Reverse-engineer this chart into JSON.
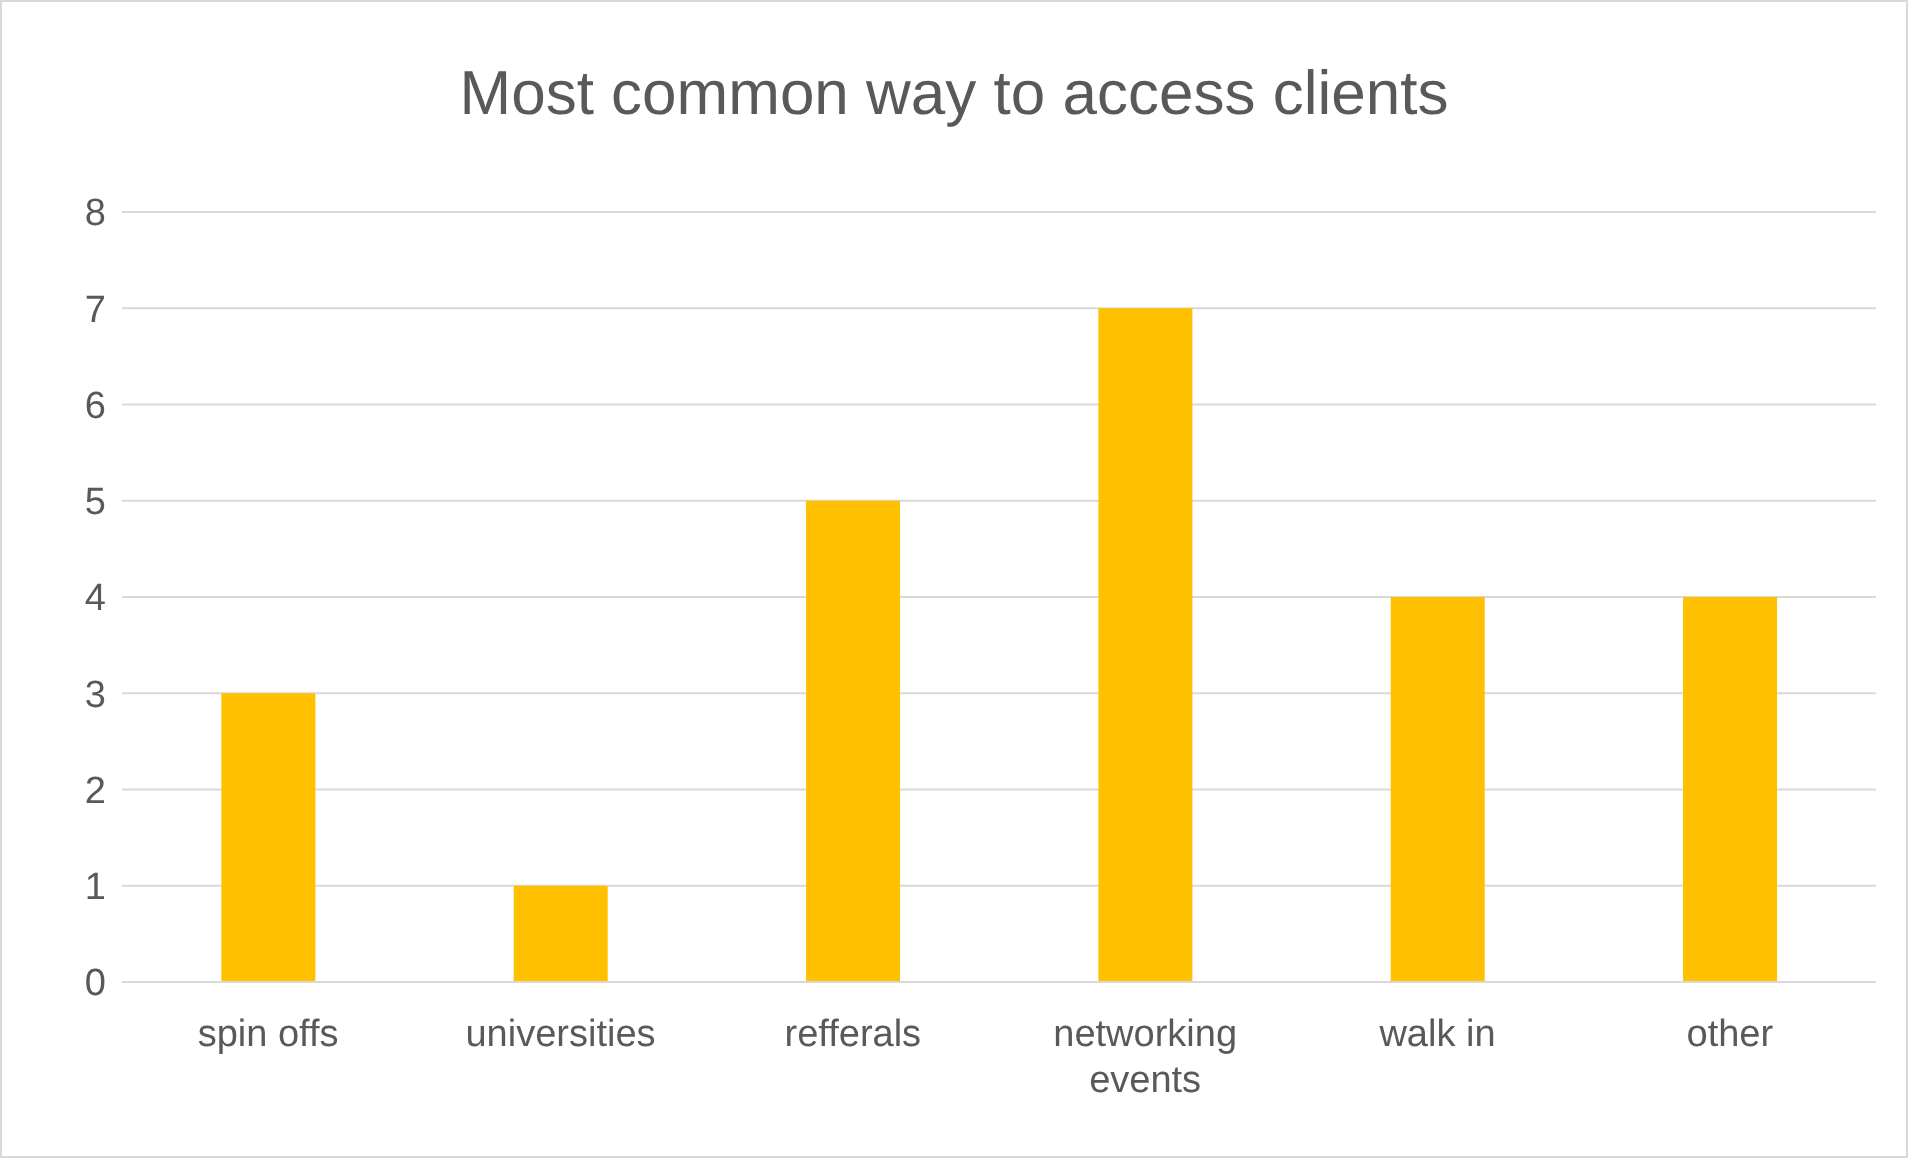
{
  "chart_data": {
    "type": "bar",
    "title": "Most common way to access clients",
    "categories": [
      "spin offs",
      "universities",
      "refferals",
      "networking events",
      "walk in",
      "other"
    ],
    "values": [
      3,
      1,
      5,
      7,
      4,
      4
    ],
    "color": "#ffc000",
    "ylim": [
      0,
      8
    ],
    "yticks": [
      0,
      1,
      2,
      3,
      4,
      5,
      6,
      7,
      8
    ],
    "grid": "y"
  }
}
